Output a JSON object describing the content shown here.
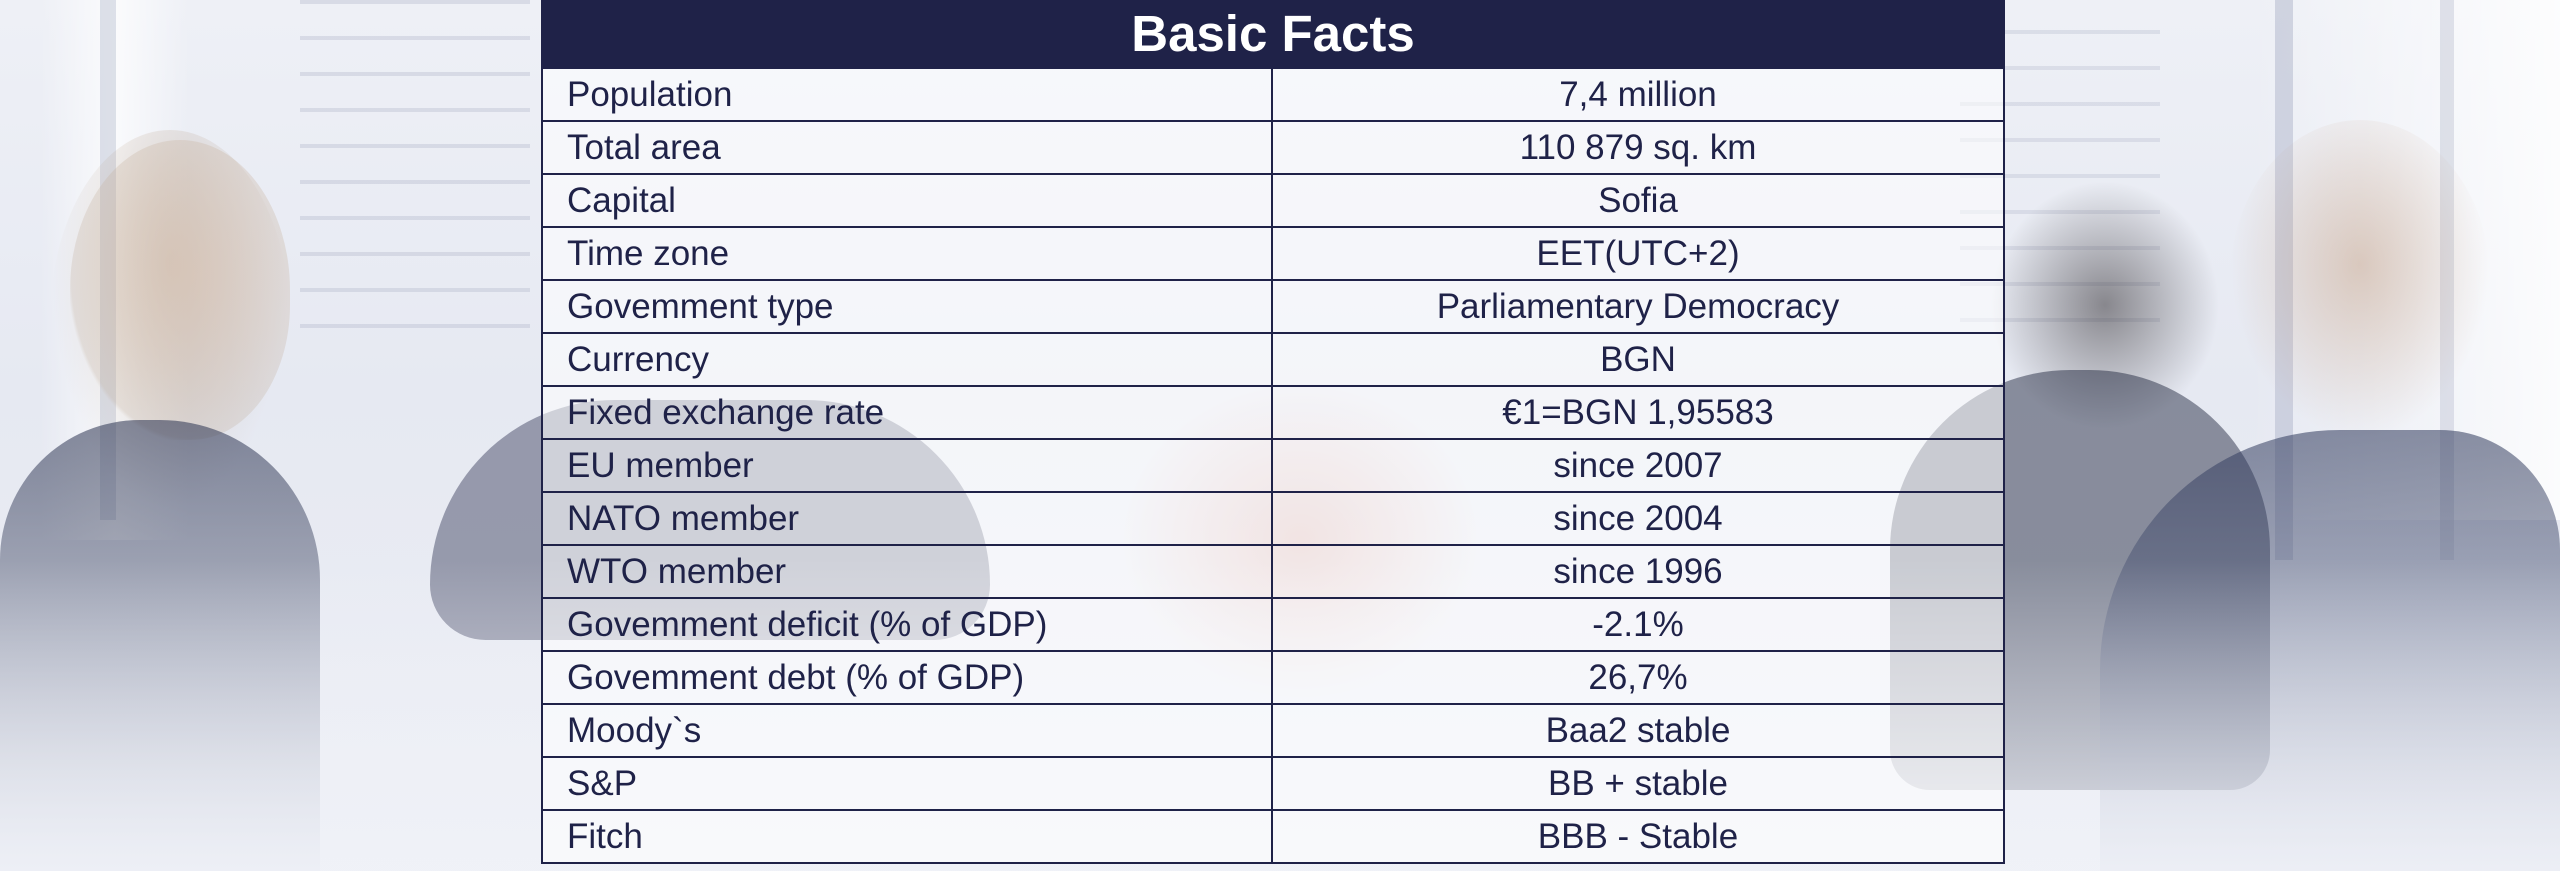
{
  "table": {
    "title": "Basic Facts",
    "rows": [
      {
        "label": "Population",
        "value": "7,4 million"
      },
      {
        "label": "Total area",
        "value": "110 879 sq. km"
      },
      {
        "label": "Capital",
        "value": "Sofia"
      },
      {
        "label": "Time zone",
        "value": "EET(UTC+2)"
      },
      {
        "label": "Govemment type",
        "value": "Parliamentary Democracy"
      },
      {
        "label": "Currency",
        "value": "BGN"
      },
      {
        "label": "Fixed exchange rate",
        "value": "€1=BGN 1,95583"
      },
      {
        "label": "EU member",
        "value": "since 2007"
      },
      {
        "label": "NATO member",
        "value": "since 2004"
      },
      {
        "label": "WTO member",
        "value": "since 1996"
      },
      {
        "label": "Govemment deficit (% of GDP)",
        "value": "-2.1%"
      },
      {
        "label": "Govemment debt (% of GDP)",
        "value": "26,7%"
      },
      {
        "label": "Moody`s",
        "value": "Baa2 stable"
      },
      {
        "label": "S&P",
        "value": "BB + stable"
      },
      {
        "label": "Fitch",
        "value": "BBB - Stable"
      }
    ]
  },
  "colors": {
    "header_bg": "#1f2248",
    "header_text": "#ffffff",
    "border": "#1f2248",
    "text": "#1f2248"
  }
}
